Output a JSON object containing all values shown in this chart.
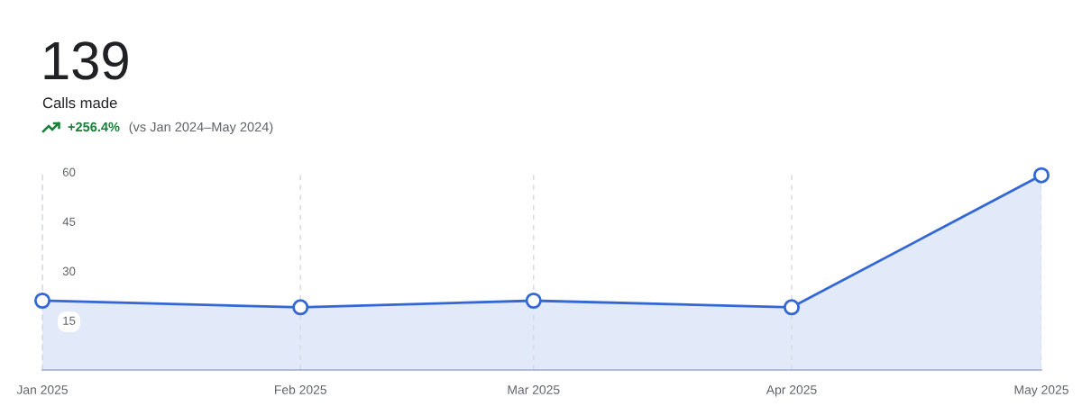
{
  "chart_data": {
    "type": "area",
    "title": "139",
    "subtitle": "Calls made",
    "annotations": [
      "+256.4%",
      "(vs Jan 2024–May 2024)"
    ],
    "x": [
      "2025-01",
      "2025-02",
      "2025-03",
      "2025-04",
      "2025-05"
    ],
    "series": [
      {
        "color": "#3367d6",
        "values": [
          21,
          19,
          21,
          19,
          59
        ]
      }
    ],
    "xlim": [
      "2025-01",
      "2025-05"
    ],
    "xticks": [
      {
        "value": "2025-01",
        "label": "Jan 2025"
      },
      {
        "value": "2025-02",
        "label": "Feb 2025"
      },
      {
        "value": "2025-03",
        "label": "Mar 2025"
      },
      {
        "value": "2025-04",
        "label": "Apr 2025"
      },
      {
        "value": "2025-05",
        "label": "May 2025"
      }
    ],
    "ylim": [
      0,
      60
    ],
    "yticks": [
      15,
      30,
      45,
      60
    ],
    "grid": "x",
    "marker": "circle",
    "line_style": "solid"
  }
}
